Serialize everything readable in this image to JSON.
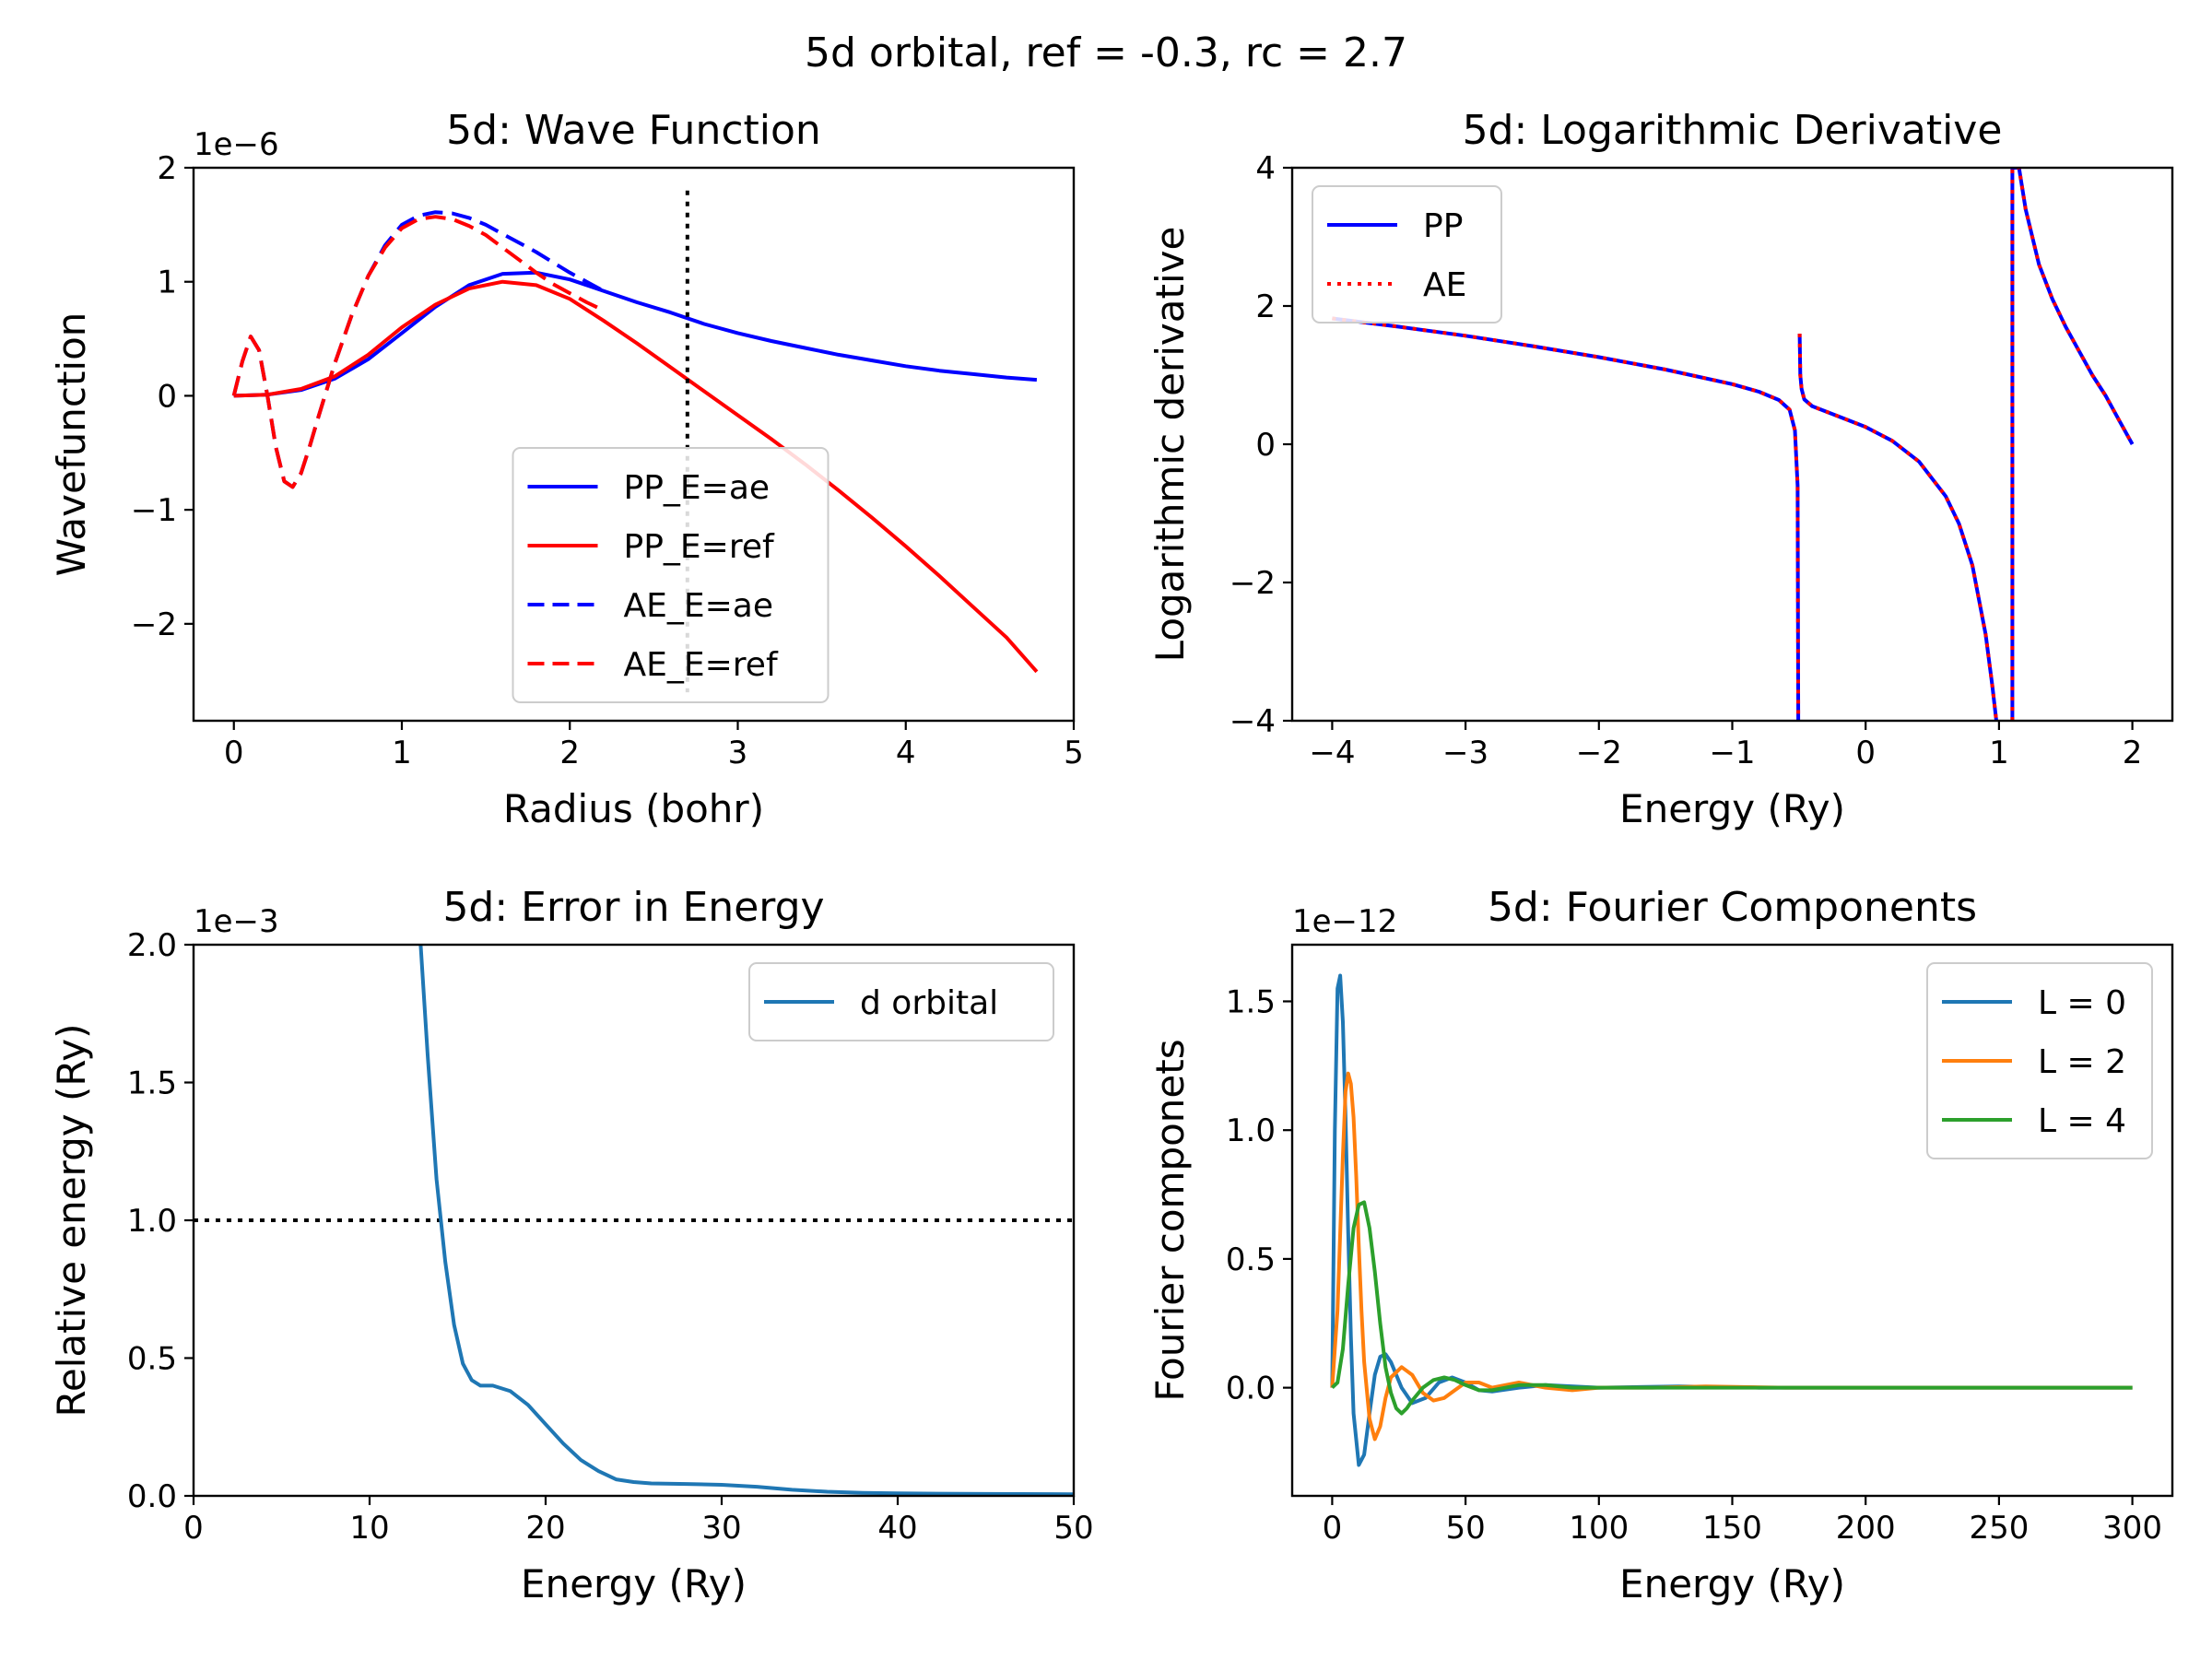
{
  "figure": {
    "suptitle": "5d orbital, ref = -0.3, rc = 2.7"
  },
  "chart_data": [
    {
      "id": "wave",
      "type": "line",
      "title": "5d: Wave Function",
      "xlabel": "Radius (bohr)",
      "ylabel": "Wavefunction",
      "offset_text": "1e−6",
      "xlim": [
        -0.24,
        5.0
      ],
      "ylim": [
        -2.85,
        2.0
      ],
      "xticks": [
        0,
        1,
        2,
        3,
        4,
        5
      ],
      "xtick_labels": [
        "0",
        "1",
        "2",
        "3",
        "4",
        "5"
      ],
      "yticks": [
        -2,
        -1,
        0,
        1,
        2
      ],
      "ytick_labels": [
        "−2",
        "−1",
        "0",
        "1",
        "2"
      ],
      "legend": {
        "placement": "lower-center"
      },
      "vline": {
        "x": 2.7,
        "y0": -2.6,
        "y1": 1.8,
        "style": "dotted",
        "color": "#000000"
      },
      "series": [
        {
          "name": "PP_E=ae",
          "color": "#0000ff",
          "dash": "solid",
          "x": [
            0,
            0.2,
            0.4,
            0.6,
            0.8,
            1.0,
            1.2,
            1.4,
            1.6,
            1.8,
            2.0,
            2.2,
            2.4,
            2.6,
            2.8,
            3.0,
            3.2,
            3.4,
            3.6,
            3.8,
            4.0,
            4.2,
            4.4,
            4.6,
            4.78
          ],
          "y": [
            0,
            0.01,
            0.05,
            0.15,
            0.32,
            0.55,
            0.78,
            0.97,
            1.07,
            1.08,
            1.02,
            0.92,
            0.82,
            0.73,
            0.63,
            0.55,
            0.48,
            0.42,
            0.36,
            0.31,
            0.26,
            0.22,
            0.19,
            0.16,
            0.14
          ]
        },
        {
          "name": "PP_E=ref",
          "color": "#ff0000",
          "dash": "solid",
          "x": [
            0,
            0.2,
            0.4,
            0.6,
            0.8,
            1.0,
            1.2,
            1.4,
            1.6,
            1.8,
            2.0,
            2.2,
            2.4,
            2.6,
            2.8,
            3.0,
            3.2,
            3.4,
            3.6,
            3.8,
            4.0,
            4.2,
            4.4,
            4.6,
            4.78
          ],
          "y": [
            0,
            0.01,
            0.06,
            0.17,
            0.36,
            0.6,
            0.8,
            0.94,
            1.0,
            0.97,
            0.85,
            0.66,
            0.46,
            0.25,
            0.04,
            -0.17,
            -0.38,
            -0.6,
            -0.83,
            -1.07,
            -1.32,
            -1.58,
            -1.85,
            -2.12,
            -2.42
          ]
        },
        {
          "name": "AE_E=ae",
          "color": "#0000ff",
          "dash": "dashed",
          "x": [
            0,
            0.05,
            0.1,
            0.15,
            0.2,
            0.25,
            0.3,
            0.35,
            0.4,
            0.45,
            0.5,
            0.6,
            0.7,
            0.8,
            0.9,
            1.0,
            1.1,
            1.2,
            1.3,
            1.4,
            1.5,
            1.6,
            1.7,
            1.8,
            1.9,
            2.0,
            2.1,
            2.2
          ],
          "y": [
            0,
            0.3,
            0.52,
            0.4,
            0.0,
            -0.45,
            -0.75,
            -0.8,
            -0.68,
            -0.45,
            -0.2,
            0.28,
            0.7,
            1.05,
            1.32,
            1.5,
            1.58,
            1.61,
            1.6,
            1.56,
            1.5,
            1.42,
            1.34,
            1.26,
            1.17,
            1.08,
            1.0,
            0.92
          ]
        },
        {
          "name": "AE_E=ref",
          "color": "#ff0000",
          "dash": "dashed",
          "x": [
            0,
            0.05,
            0.1,
            0.15,
            0.2,
            0.25,
            0.3,
            0.35,
            0.4,
            0.45,
            0.5,
            0.6,
            0.7,
            0.8,
            0.9,
            1.0,
            1.1,
            1.2,
            1.3,
            1.4,
            1.5,
            1.6,
            1.7,
            1.8,
            1.9,
            2.0,
            2.1,
            2.2
          ],
          "y": [
            0,
            0.3,
            0.52,
            0.4,
            0.0,
            -0.45,
            -0.75,
            -0.8,
            -0.68,
            -0.45,
            -0.2,
            0.28,
            0.7,
            1.05,
            1.3,
            1.47,
            1.55,
            1.57,
            1.55,
            1.49,
            1.41,
            1.3,
            1.19,
            1.08,
            0.98,
            0.9,
            0.82,
            0.75
          ]
        }
      ]
    },
    {
      "id": "logderiv",
      "type": "line",
      "title": "5d: Logarithmic Derivative",
      "xlabel": "Energy (Ry)",
      "ylabel": "Logarithmic derivative",
      "xlim": [
        -4.3,
        2.3
      ],
      "ylim": [
        -4,
        4
      ],
      "xticks": [
        -4,
        -3,
        -2,
        -1,
        0,
        1,
        2
      ],
      "xtick_labels": [
        "−4",
        "−3",
        "−2",
        "−1",
        "0",
        "1",
        "2"
      ],
      "yticks": [
        -4,
        -2,
        0,
        2,
        4
      ],
      "ytick_labels": [
        "−4",
        "−2",
        "0",
        "2",
        "4"
      ],
      "legend": {
        "placement": "top-left"
      },
      "series": [
        {
          "name": "PP",
          "color": "#0000ff",
          "dash": "solid",
          "segments": [
            {
              "x": [
                -4.0,
                -3.5,
                -3.0,
                -2.5,
                -2.0,
                -1.5,
                -1.0,
                -0.8,
                -0.65,
                -0.57,
                -0.53,
                -0.51,
                -0.505
              ],
              "y": [
                1.82,
                1.7,
                1.57,
                1.42,
                1.26,
                1.08,
                0.87,
                0.76,
                0.64,
                0.5,
                0.2,
                -0.6,
                -4.0
              ]
            },
            {
              "x": [
                -0.495,
                -0.49,
                -0.48,
                -0.46,
                -0.4,
                -0.2,
                0.0,
                0.2,
                0.4,
                0.6,
                0.7,
                0.8,
                0.9,
                0.95,
                0.98
              ],
              "y": [
                1.6,
                1.0,
                0.8,
                0.65,
                0.55,
                0.4,
                0.25,
                0.05,
                -0.25,
                -0.75,
                -1.15,
                -1.75,
                -2.75,
                -3.5,
                -4.0
              ]
            },
            {
              "x": [
                1.1,
                1.1,
                1.105,
                1.12,
                1.15,
                1.2,
                1.3,
                1.4,
                1.5,
                1.6,
                1.7,
                1.8,
                1.9,
                2.0
              ],
              "y": [
                -4.0,
                4.0,
                4.0,
                4.0,
                4.0,
                3.4,
                2.6,
                2.1,
                1.7,
                1.35,
                1.0,
                0.7,
                0.35,
                0.0
              ]
            }
          ]
        },
        {
          "name": "AE",
          "color": "#ff0000",
          "dash": "dotted",
          "segments": [
            {
              "x": [
                -4.0,
                -3.5,
                -3.0,
                -2.5,
                -2.0,
                -1.5,
                -1.0,
                -0.8,
                -0.65,
                -0.57,
                -0.53,
                -0.51,
                -0.505
              ],
              "y": [
                1.82,
                1.7,
                1.57,
                1.42,
                1.26,
                1.08,
                0.87,
                0.76,
                0.64,
                0.5,
                0.2,
                -0.6,
                -4.0
              ]
            },
            {
              "x": [
                -0.495,
                -0.49,
                -0.48,
                -0.46,
                -0.4,
                -0.2,
                0.0,
                0.2,
                0.4,
                0.6,
                0.7,
                0.8,
                0.9,
                0.95,
                0.98
              ],
              "y": [
                1.6,
                1.0,
                0.8,
                0.65,
                0.55,
                0.4,
                0.25,
                0.05,
                -0.25,
                -0.75,
                -1.15,
                -1.75,
                -2.75,
                -3.5,
                -4.0
              ]
            },
            {
              "x": [
                1.1,
                1.1,
                1.105,
                1.12,
                1.15,
                1.2,
                1.3,
                1.4,
                1.5,
                1.6,
                1.7,
                1.8,
                1.9,
                2.0
              ],
              "y": [
                -4.0,
                4.0,
                4.0,
                4.0,
                4.0,
                3.4,
                2.6,
                2.1,
                1.7,
                1.35,
                1.0,
                0.7,
                0.35,
                0.0
              ]
            }
          ]
        }
      ]
    },
    {
      "id": "error",
      "type": "line",
      "title": "5d: Error in Energy",
      "xlabel": "Energy (Ry)",
      "ylabel": "Relative energy (Ry)",
      "offset_text": "1e−3",
      "xlim": [
        0,
        50
      ],
      "ylim": [
        0,
        2.0
      ],
      "xticks": [
        0,
        10,
        20,
        30,
        40,
        50
      ],
      "xtick_labels": [
        "0",
        "10",
        "20",
        "30",
        "40",
        "50"
      ],
      "yticks": [
        0.0,
        0.5,
        1.0,
        1.5,
        2.0
      ],
      "ytick_labels": [
        "0.0",
        "0.5",
        "1.0",
        "1.5",
        "2.0"
      ],
      "legend": {
        "placement": "top-right"
      },
      "hline": {
        "y": 1.0,
        "style": "dotted",
        "color": "#000000"
      },
      "series": [
        {
          "name": "d orbital",
          "color": "#1f77b4",
          "dash": "solid",
          "x": [
            12.9,
            13.3,
            13.8,
            14.3,
            14.8,
            15.3,
            15.8,
            16.3,
            17.0,
            18.0,
            19.0,
            20.0,
            21.0,
            22.0,
            23.0,
            24.0,
            25.0,
            26.0,
            28.0,
            30.0,
            32.0,
            34.0,
            36.0,
            38.0,
            40.0,
            45.0,
            50.0
          ],
          "y": [
            2.0,
            1.6,
            1.15,
            0.85,
            0.62,
            0.48,
            0.42,
            0.4,
            0.4,
            0.38,
            0.33,
            0.26,
            0.19,
            0.13,
            0.09,
            0.06,
            0.05,
            0.045,
            0.043,
            0.04,
            0.033,
            0.022,
            0.015,
            0.011,
            0.009,
            0.007,
            0.006
          ]
        }
      ]
    },
    {
      "id": "fourier",
      "type": "line",
      "title": "5d: Fourier Components",
      "xlabel": "Energy (Ry)",
      "ylabel": "Fourier componets",
      "offset_text": "1e−12",
      "xlim": [
        -15,
        315
      ],
      "ylim": [
        -0.42,
        1.72
      ],
      "xticks": [
        0,
        50,
        100,
        150,
        200,
        250,
        300
      ],
      "xtick_labels": [
        "0",
        "50",
        "100",
        "150",
        "200",
        "250",
        "300"
      ],
      "yticks": [
        0.0,
        0.5,
        1.0,
        1.5
      ],
      "ytick_labels": [
        "0.0",
        "0.5",
        "1.0",
        "1.5"
      ],
      "legend": {
        "placement": "top-right"
      },
      "series": [
        {
          "name": "L = 0",
          "color": "#1f77b4",
          "dash": "solid",
          "x": [
            0,
            1,
            2,
            3,
            4,
            5,
            6,
            7,
            8,
            10,
            12,
            14,
            16,
            18,
            20,
            22,
            24,
            26,
            30,
            35,
            40,
            45,
            50,
            55,
            60,
            70,
            80,
            100,
            130,
            160,
            200,
            250,
            300
          ],
          "y": [
            0.0,
            1.0,
            1.55,
            1.6,
            1.42,
            1.05,
            0.6,
            0.2,
            -0.1,
            -0.3,
            -0.26,
            -0.1,
            0.05,
            0.12,
            0.13,
            0.1,
            0.05,
            0.0,
            -0.06,
            -0.04,
            0.02,
            0.04,
            0.02,
            -0.01,
            -0.015,
            0.0,
            0.01,
            0.0,
            0.005,
            0.0,
            0.0,
            0.0,
            0.0
          ]
        },
        {
          "name": "L = 2",
          "color": "#ff7f0e",
          "dash": "solid",
          "x": [
            0,
            2,
            4,
            5,
            6,
            7,
            8,
            9,
            10,
            11,
            12,
            14,
            16,
            18,
            20,
            22,
            26,
            30,
            34,
            38,
            42,
            46,
            50,
            55,
            60,
            70,
            80,
            90,
            100,
            120,
            140,
            170,
            200,
            250,
            300
          ],
          "y": [
            0.0,
            0.3,
            0.9,
            1.15,
            1.22,
            1.18,
            1.05,
            0.82,
            0.55,
            0.3,
            0.1,
            -0.12,
            -0.2,
            -0.15,
            -0.04,
            0.04,
            0.08,
            0.05,
            -0.02,
            -0.05,
            -0.04,
            -0.01,
            0.02,
            0.02,
            0.0,
            0.02,
            0.0,
            -0.01,
            0.0,
            0.0,
            0.005,
            0.0,
            0.0,
            0.0,
            0.0
          ]
        },
        {
          "name": "L = 4",
          "color": "#2ca02c",
          "dash": "solid",
          "x": [
            0,
            2,
            4,
            6,
            8,
            10,
            12,
            14,
            16,
            18,
            20,
            22,
            24,
            26,
            28,
            30,
            34,
            38,
            42,
            46,
            50,
            55,
            60,
            70,
            80,
            90,
            100,
            120,
            140,
            170,
            200,
            250,
            300
          ],
          "y": [
            0.0,
            0.02,
            0.15,
            0.4,
            0.62,
            0.71,
            0.72,
            0.62,
            0.45,
            0.25,
            0.08,
            -0.02,
            -0.08,
            -0.1,
            -0.08,
            -0.05,
            0.0,
            0.03,
            0.04,
            0.03,
            0.01,
            -0.01,
            -0.01,
            0.01,
            0.01,
            0.0,
            0.0,
            0.0,
            0.0,
            0.0,
            0.0,
            0.0,
            0.0
          ]
        }
      ]
    }
  ]
}
